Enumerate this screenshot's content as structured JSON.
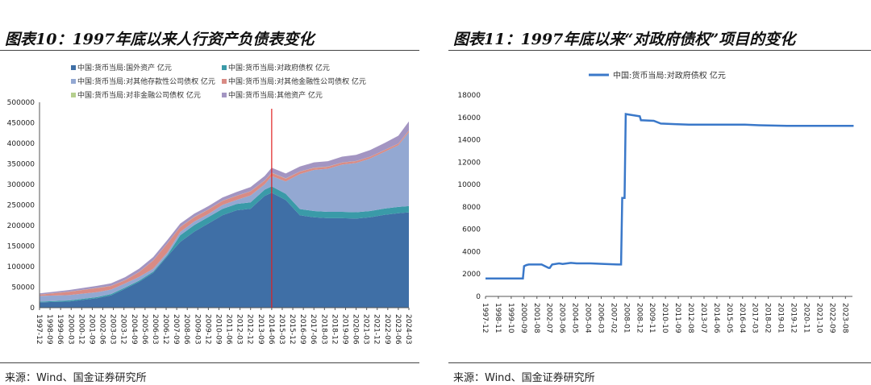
{
  "left": {
    "title": "图表10：1997年底以来人行资产负债表变化",
    "source": "来源：Wind、国金证券研究所"
  },
  "right": {
    "title": "图表11：1997年底以来“对政府债权”项目的变化",
    "source": "来源：Wind、国金证券研究所"
  },
  "chart_data": [
    {
      "type": "area",
      "stacked": true,
      "ylim": [
        0,
        500000
      ],
      "yticks": [
        0,
        50000,
        100000,
        150000,
        200000,
        250000,
        300000,
        350000,
        400000,
        450000,
        500000
      ],
      "xticks": [
        "1997-12",
        "1998-09",
        "1999-06",
        "2000-03",
        "2000-12",
        "2001-09",
        "2002-06",
        "2003-03",
        "2003-12",
        "2004-09",
        "2005-06",
        "2006-03",
        "2006-12",
        "2007-09",
        "2008-06",
        "2009-03",
        "2009-12",
        "2010-09",
        "2011-06",
        "2012-03",
        "2012-12",
        "2013-09",
        "2014-06",
        "2015-03",
        "2015-12",
        "2016-09",
        "2017-06",
        "2018-03",
        "2018-12",
        "2019-09",
        "2020-06",
        "2021-03",
        "2021-12",
        "2022-09",
        "2023-06",
        "2024-03"
      ],
      "legend": "top",
      "annotation": {
        "type": "vertical-line",
        "x": "2014-06",
        "color": "#e02020"
      },
      "x": [
        "1997-12",
        "2000-01",
        "2002-01",
        "2003-01",
        "2004-01",
        "2005-01",
        "2006-01",
        "2007-01",
        "2007-12",
        "2008-12",
        "2009-12",
        "2010-12",
        "2011-12",
        "2012-12",
        "2013-12",
        "2014-06",
        "2015-06",
        "2016-06",
        "2017-06",
        "2018-06",
        "2019-06",
        "2020-06",
        "2021-06",
        "2022-06",
        "2023-06",
        "2024-03"
      ],
      "series": [
        {
          "name": "中国:货币当局:国外资产 亿元",
          "color": "#3f6fa6",
          "values": [
            13000,
            15000,
            23000,
            30000,
            46000,
            63000,
            85000,
            125000,
            160000,
            185000,
            205000,
            225000,
            237000,
            241000,
            272000,
            280000,
            262000,
            225000,
            220000,
            218000,
            218000,
            217000,
            220000,
            226000,
            230000,
            232000
          ]
        },
        {
          "name": "中国:货币当局:对政府债权 亿元",
          "color": "#3a9aa8",
          "values": [
            1600,
            2700,
            2800,
            3000,
            2950,
            2900,
            2900,
            2850,
            16300,
            16200,
            15700,
            15450,
            15350,
            15350,
            15300,
            15300,
            15300,
            15300,
            15300,
            15250,
            15250,
            15250,
            15250,
            15250,
            15250,
            15250
          ]
        },
        {
          "name": "中国:货币当局:对其他存款性公司债权 亿元",
          "color": "#93a8d2",
          "values": [
            14000,
            13000,
            12000,
            11000,
            10000,
            9000,
            7000,
            6500,
            8000,
            8500,
            7200,
            9500,
            10000,
            17000,
            13000,
            25000,
            30000,
            85000,
            100000,
            105000,
            115000,
            120000,
            128000,
            138000,
            150000,
            180000
          ]
        },
        {
          "name": "中国:货币当局:对其他金融性公司债权 亿元",
          "color": "#d98b85",
          "values": [
            3000,
            8000,
            10000,
            9000,
            8000,
            12000,
            20000,
            22000,
            12000,
            11000,
            11000,
            10000,
            10000,
            10000,
            9000,
            8000,
            7000,
            6000,
            5000,
            5000,
            5000,
            4500,
            4200,
            4000,
            4000,
            4000
          ]
        },
        {
          "name": "中国:货币当局:对非金融公司债权 亿元",
          "color": "#b5cf8e",
          "values": [
            300,
            300,
            300,
            300,
            300,
            300,
            300,
            300,
            300,
            300,
            300,
            300,
            300,
            300,
            300,
            300,
            300,
            300,
            300,
            300,
            300,
            300,
            300,
            300,
            300,
            300
          ]
        },
        {
          "name": "中国:货币当局:其他资产 亿元",
          "color": "#a395c2",
          "values": [
            3000,
            4000,
            5000,
            6000,
            7000,
            8000,
            8000,
            8000,
            8000,
            8000,
            8000,
            8000,
            9000,
            10000,
            11000,
            12000,
            12000,
            12000,
            13000,
            13000,
            14000,
            15000,
            16000,
            17000,
            19000,
            22000
          ]
        }
      ]
    },
    {
      "type": "line",
      "ylim": [
        0,
        18000
      ],
      "yticks": [
        0,
        2000,
        4000,
        6000,
        8000,
        10000,
        12000,
        14000,
        16000,
        18000
      ],
      "xticks": [
        "1997-12",
        "1998-11",
        "1999-10",
        "2000-09",
        "2001-08",
        "2002-07",
        "2003-06",
        "2004-05",
        "2005-04",
        "2006-03",
        "2007-02",
        "2008-01",
        "2008-12",
        "2009-11",
        "2010-10",
        "2011-09",
        "2012-08",
        "2013-07",
        "2014-06",
        "2015-05",
        "2016-04",
        "2017-03",
        "2018-02",
        "2019-01",
        "2019-12",
        "2020-11",
        "2021-10",
        "2022-09",
        "2023-08"
      ],
      "legend": "top",
      "series": [
        {
          "name": "中国:货币当局:对政府债权 亿元",
          "color": "#3a78c9",
          "x": [
            "1997-12",
            "2000-08",
            "2000-09",
            "2000-11",
            "2001-01",
            "2001-12",
            "2002-03",
            "2002-06",
            "2002-07",
            "2002-09",
            "2003-03",
            "2003-06",
            "2004-01",
            "2004-06",
            "2005-06",
            "2006-06",
            "2007-06",
            "2007-08",
            "2007-09",
            "2007-11",
            "2007-12",
            "2008-06",
            "2008-12",
            "2009-01",
            "2009-12",
            "2010-06",
            "2011-06",
            "2012-06",
            "2016-06",
            "2017-06",
            "2019-06",
            "2024-03"
          ],
          "values": [
            1600,
            1600,
            2700,
            2800,
            2850,
            2850,
            2700,
            2550,
            2550,
            2850,
            2950,
            2900,
            3000,
            2950,
            2950,
            2900,
            2850,
            2850,
            8800,
            8800,
            16300,
            16200,
            16100,
            15750,
            15700,
            15450,
            15400,
            15350,
            15350,
            15300,
            15250,
            15250
          ]
        }
      ]
    }
  ]
}
